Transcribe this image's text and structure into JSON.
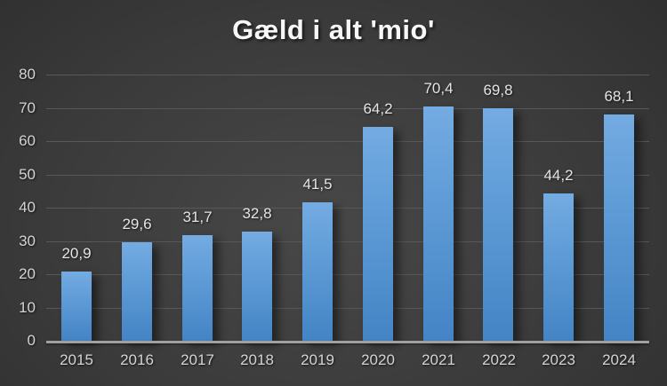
{
  "chart_data": {
    "type": "bar",
    "title": "Gæld i alt 'mio'",
    "categories": [
      "2015",
      "2016",
      "2017",
      "2018",
      "2019",
      "2020",
      "2021",
      "2022",
      "2023",
      "2024"
    ],
    "values": [
      20.9,
      29.6,
      31.7,
      32.8,
      41.5,
      64.2,
      70.4,
      69.8,
      44.2,
      68.1
    ],
    "value_labels": [
      "20,9",
      "29,6",
      "31,7",
      "32,8",
      "41,5",
      "64,2",
      "70,4",
      "69,8",
      "44,2",
      "68,1"
    ],
    "xlabel": "",
    "ylabel": "",
    "ylim": [
      0,
      80
    ],
    "yticks": [
      0,
      10,
      20,
      30,
      40,
      50,
      60,
      70,
      80
    ],
    "grid": true,
    "legend_position": "none",
    "colors": {
      "bar_top": "#74abe2",
      "bar_bottom": "#4484c5",
      "background_center": "#484848",
      "background_edge": "#262626",
      "gridline": "#585858",
      "axis_line": "#a0a0a0",
      "tick_text": "#d4d4d4",
      "value_text": "#e5e5e5",
      "title_text": "#f7f7f7"
    }
  }
}
